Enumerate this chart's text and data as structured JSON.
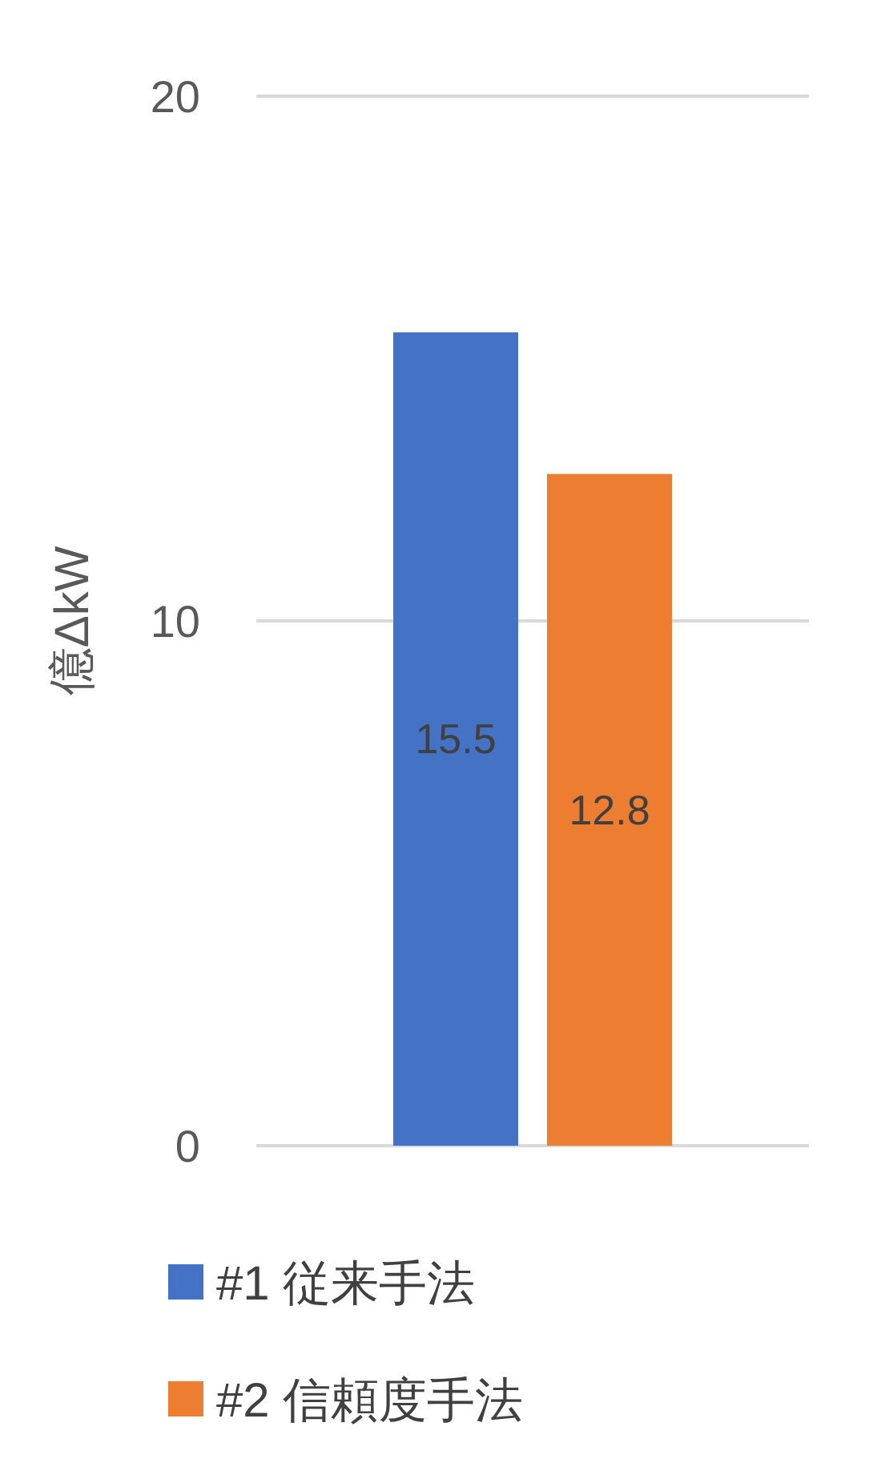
{
  "chart_data": {
    "type": "bar",
    "ylabel": "億ΔkW",
    "categories": [
      null
    ],
    "series": [
      {
        "name": "#1 従来手法",
        "color": "#4472c4",
        "values": [
          15.5
        ]
      },
      {
        "name": "#2 信頼度手法",
        "color": "#ed7d31",
        "values": [
          12.8
        ]
      }
    ],
    "ylim": [
      0,
      20
    ],
    "yticks": [
      0,
      10,
      20
    ],
    "grid": "y",
    "legend": "bottom",
    "data_labels": true
  }
}
